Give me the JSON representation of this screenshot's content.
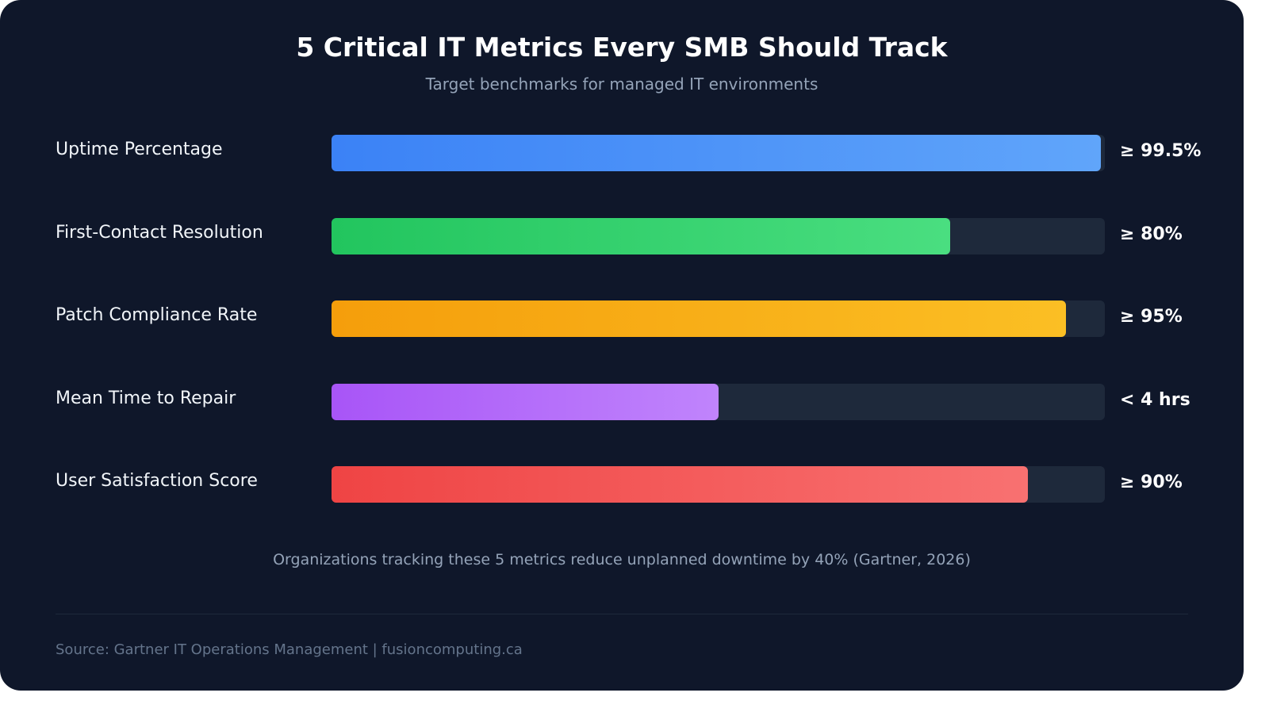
{
  "chart_data": {
    "type": "bar",
    "orientation": "horizontal",
    "title": "5 Critical IT Metrics Every SMB Should Track",
    "subtitle": "Target benchmarks for managed IT environments",
    "xlim": [
      0,
      100
    ],
    "grid": false,
    "categories": [
      "Uptime Percentage",
      "First-Contact Resolution",
      "Patch Compliance Rate",
      "Mean Time to Repair",
      "User Satisfaction Score"
    ],
    "values": [
      99.5,
      80,
      95,
      50,
      90
    ],
    "value_labels": [
      "≥ 99.5%",
      "≥ 80%",
      "≥ 95%",
      "< 4 hrs",
      "≥ 90%"
    ],
    "colors": [
      [
        "#3b82f6",
        "#60a5fa"
      ],
      [
        "#22c55e",
        "#4ade80"
      ],
      [
        "#f59e0b",
        "#fbbf24"
      ],
      [
        "#a855f7",
        "#c084fc"
      ],
      [
        "#ef4444",
        "#f87171"
      ]
    ],
    "track_color": "#1e293b",
    "annotation": "Organizations tracking these 5 metrics reduce unplanned downtime by 40% (Gartner, 2026)",
    "source": "Source: Gartner IT Operations Management | fusioncomputing.ca"
  }
}
